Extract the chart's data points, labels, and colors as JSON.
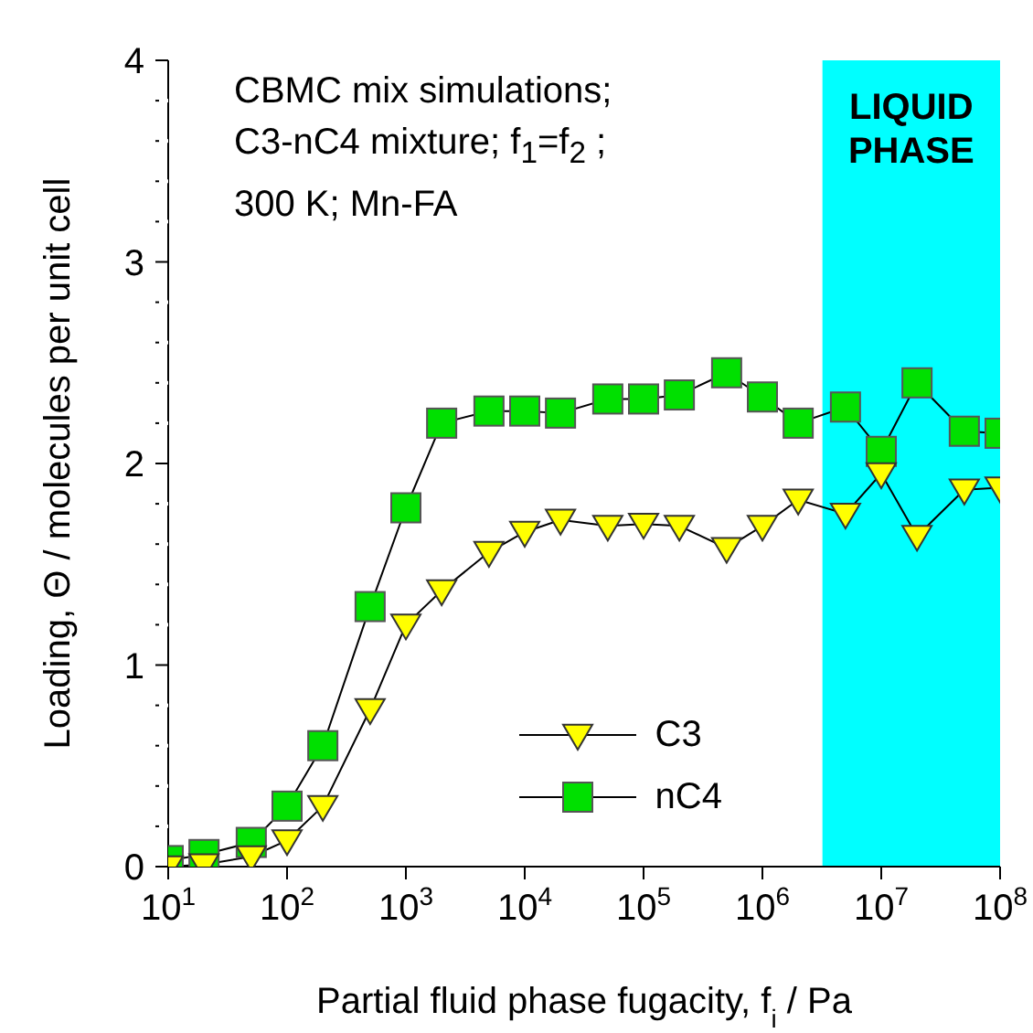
{
  "chart_data": {
    "type": "line",
    "xlabel": "Partial fluid phase fugacity, f$_{i}$ / Pa",
    "ylabel": "Loading, Θ / molecules per unit cell",
    "annotations": [
      "CBMC mix simulations;",
      "C3-nC4 mixture; f$_{1}$=f$_{2}$ ;",
      "300 K; Mn-FA"
    ],
    "log": "x",
    "grid": false,
    "legend": "bottom right",
    "xlim": [
      10,
      100000000
    ],
    "xticks": [
      {
        "value": 10,
        "label": "10$^{1}$"
      },
      {
        "value": 100,
        "label": "10$^{2}$"
      },
      {
        "value": 1000,
        "label": "10$^{3}$"
      },
      {
        "value": 10000,
        "label": "10$^{4}$"
      },
      {
        "value": 100000,
        "label": "10$^{5}$"
      },
      {
        "value": 1000000,
        "label": "10$^{6}$"
      },
      {
        "value": 10000000,
        "label": "10$^{7}$"
      },
      {
        "value": 100000000,
        "label": "10$^{8}$"
      }
    ],
    "ylim": [
      0,
      4
    ],
    "yticks": [
      0,
      {
        "value": 0.2,
        "label": null
      },
      {
        "value": 0.4,
        "label": null
      },
      {
        "value": 0.6,
        "label": null
      },
      {
        "value": 0.8,
        "label": null
      },
      1,
      {
        "value": 1.2,
        "label": null
      },
      {
        "value": 1.4,
        "label": null
      },
      {
        "value": 1.6,
        "label": null
      },
      {
        "value": 1.8,
        "label": null
      },
      2,
      {
        "value": 2.2,
        "label": null
      },
      {
        "value": 2.4,
        "label": null
      },
      {
        "value": 2.6,
        "label": null
      },
      {
        "value": 2.8,
        "label": null
      },
      3,
      {
        "value": 3.2,
        "label": null
      },
      {
        "value": 3.4,
        "label": null
      },
      {
        "value": 3.6,
        "label": null
      },
      {
        "value": 3.8,
        "label": null
      },
      4
    ],
    "bands": [
      {
        "axis": "x",
        "from": 3200000,
        "to": 100000000,
        "label": "LIQUID PHASE",
        "color": "#00ffff"
      }
    ],
    "x": [
      10,
      20,
      50,
      100,
      200,
      500,
      1000,
      2000,
      5000,
      10000,
      20000,
      50000,
      100000,
      200000,
      500000,
      1000000,
      2000000,
      5000000,
      10000000,
      20000000,
      50000000,
      100000000
    ],
    "line_style": "solid",
    "series": [
      {
        "name": "C3",
        "color": "#ffff00",
        "marker": "triangle",
        "values": [
          0.0,
          0.01,
          0.05,
          0.13,
          0.3,
          0.78,
          1.2,
          1.37,
          1.56,
          1.66,
          1.72,
          1.69,
          1.7,
          1.69,
          1.58,
          1.69,
          1.82,
          1.75,
          1.95,
          1.64,
          1.87,
          1.88
        ]
      },
      {
        "name": "nC4",
        "color": "#00e000",
        "marker": "square",
        "values": [
          0.03,
          0.06,
          0.12,
          0.3,
          0.6,
          1.29,
          1.78,
          2.2,
          2.26,
          2.26,
          2.25,
          2.32,
          2.32,
          2.34,
          2.45,
          2.33,
          2.2,
          2.28,
          2.06,
          2.4,
          2.16,
          2.15
        ]
      }
    ]
  }
}
